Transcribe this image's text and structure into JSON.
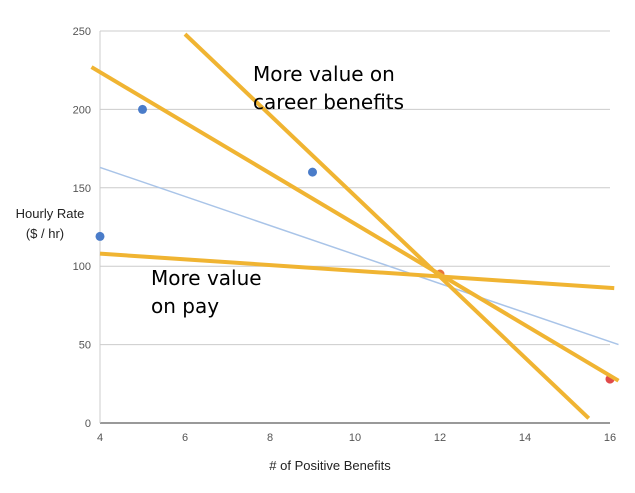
{
  "chart_data": {
    "type": "scatter",
    "xlabel": "# of Positive Benefits",
    "ylabel_lines": [
      "Hourly Rate",
      "($ / hr)"
    ],
    "xlim": [
      4,
      16
    ],
    "ylim": [
      0,
      250
    ],
    "x_ticks": [
      4,
      6,
      8,
      10,
      12,
      14,
      16
    ],
    "y_ticks": [
      0,
      50,
      100,
      150,
      200,
      250
    ],
    "grid": "horizontal",
    "points": [
      {
        "x": 4,
        "y": 119,
        "color": "#4a7cc9"
      },
      {
        "x": 5,
        "y": 200,
        "color": "#4a7cc9"
      },
      {
        "x": 9,
        "y": 160,
        "color": "#4a7cc9"
      },
      {
        "x": 12,
        "y": 95,
        "color": "#e8743b"
      },
      {
        "x": 16,
        "y": 28,
        "color": "#e04a4a"
      }
    ],
    "trendline": {
      "color": "#a9c4e8",
      "from": [
        4,
        163
      ],
      "to": [
        16.2,
        50
      ]
    },
    "lines": [
      {
        "color": "#f0b432",
        "from": [
          6,
          248
        ],
        "to": [
          15.5,
          3
        ]
      },
      {
        "color": "#f0b432",
        "from": [
          3.8,
          227
        ],
        "to": [
          16.2,
          27
        ]
      },
      {
        "color": "#f0b432",
        "from": [
          4,
          108
        ],
        "to": [
          16.1,
          86
        ]
      }
    ],
    "annotations": [
      {
        "lines": [
          "More value on",
          "career benefits"
        ],
        "x": 7.6,
        "y": 218
      },
      {
        "lines": [
          "More value",
          "on pay"
        ],
        "x": 5.2,
        "y": 88
      }
    ]
  }
}
